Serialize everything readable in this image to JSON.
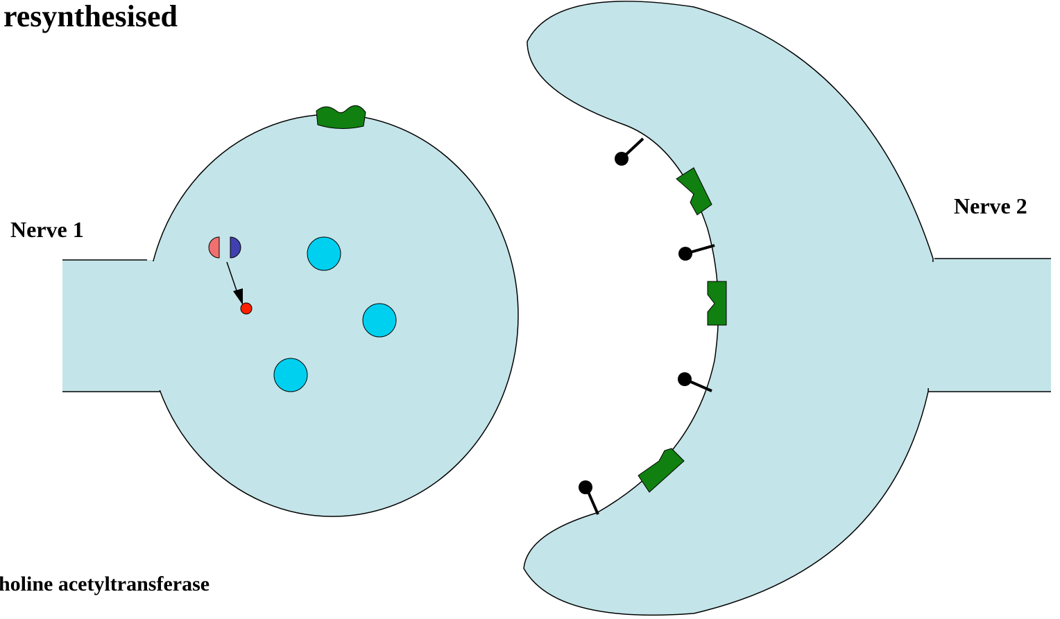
{
  "title": "resynthesised",
  "labels": {
    "nerve_1": "Nerve 1",
    "nerve_2": "Nerve 2",
    "enzyme": "holine acetyltransferase"
  }
}
